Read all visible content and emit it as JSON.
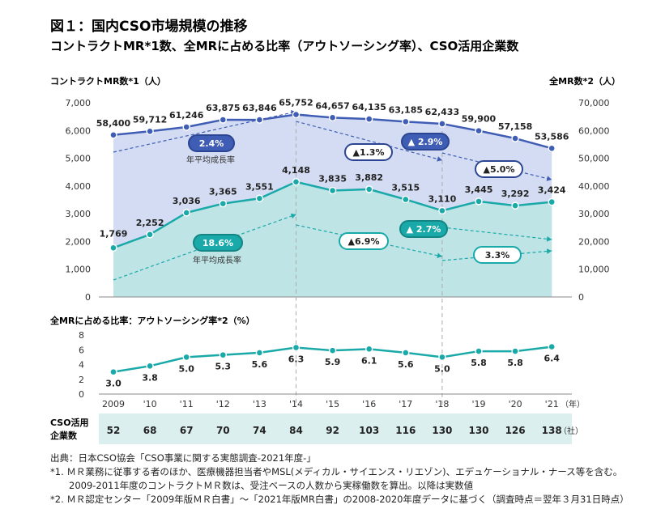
{
  "header": {
    "title": "図１：国内CSO市場規模の推移",
    "subtitle": "コントラクトMR*1数、全MRに占める比率（アウトソーシング率）、CSO活用企業数"
  },
  "chart_data": [
    {
      "type": "area",
      "left_axis_label": "コントラクトMR数*1（人）",
      "right_axis_label": "全MR数*2（人）",
      "x": [
        "2009",
        "'10",
        "'11",
        "'12",
        "'13",
        "'14",
        "'15",
        "'16",
        "'17",
        "'18",
        "'19",
        "'20",
        "'21"
      ],
      "ylim_left": [
        0,
        7000
      ],
      "yticks_left": [
        "0",
        "1,000",
        "2,000",
        "3,000",
        "4,000",
        "5,000",
        "6,000",
        "7,000"
      ],
      "ylim_right": [
        0,
        70000
      ],
      "yticks_right": [
        "0",
        "10,000",
        "20,000",
        "30,000",
        "40,000",
        "50,000",
        "60,000",
        "70,000"
      ],
      "series": [
        {
          "name": "全MR数",
          "axis": "right",
          "color": "#3f5db4",
          "fill": "#d3dcf2",
          "values": [
            58400,
            59712,
            61246,
            63875,
            63846,
            65752,
            64657,
            64135,
            63185,
            62433,
            59900,
            57158,
            53586
          ],
          "labels": [
            "58,400",
            "59,712",
            "61,246",
            "63,875",
            "63,846",
            "65,752",
            "64,657",
            "64,135",
            "63,185",
            "62,433",
            "59,900",
            "57,158",
            "53,586"
          ]
        },
        {
          "name": "コントラクトMR数",
          "axis": "left",
          "color": "#1aa9a9",
          "fill": "#bfe4e6",
          "values": [
            1769,
            2252,
            3036,
            3365,
            3551,
            4148,
            3835,
            3882,
            3515,
            3110,
            3445,
            3292,
            3424
          ],
          "labels": [
            "1,769",
            "2,252",
            "3,036",
            "3,365",
            "3,551",
            "4,148",
            "3,835",
            "3,882",
            "3,515",
            "3,110",
            "3,445",
            "3,292",
            "3,424"
          ]
        }
      ],
      "annotations": {
        "growth_label": "年平均成長率",
        "blue_badges": [
          "2.4%",
          "▲1.3%",
          "▲ 2.9%",
          "▲5.0%"
        ],
        "teal_badges": [
          "18.6%",
          "▲6.9%",
          "▲ 2.7%",
          "3.3%"
        ]
      }
    },
    {
      "type": "line",
      "axis_label": "全MRに占める比率：アウトソーシング率*2（%）",
      "ylim": [
        0,
        8
      ],
      "yticks": [
        "0",
        "2",
        "4",
        "6",
        "8"
      ],
      "values": [
        3.0,
        3.8,
        5.0,
        5.3,
        5.6,
        6.3,
        5.9,
        6.1,
        5.6,
        5.0,
        5.8,
        5.8,
        6.4
      ],
      "labels": [
        "3.0",
        "3.8",
        "5.0",
        "5.3",
        "5.6",
        "6.3",
        "5.9",
        "6.1",
        "5.6",
        "5.0",
        "5.8",
        "5.8",
        "6.4"
      ],
      "year_suffix": "（年）"
    },
    {
      "type": "table",
      "row_label_line1": "CSO活用",
      "row_label_line2": "企業数",
      "values": [
        "52",
        "68",
        "67",
        "70",
        "74",
        "84",
        "92",
        "103",
        "116",
        "130",
        "130",
        "126",
        "138"
      ],
      "unit": "（社）"
    }
  ],
  "notes": [
    "出典：日本CSO協会「CSO事業に関する実態調査-2021年度-」",
    "*1. ＭＲ業務に従事する者のほか、医療機器担当者やMSL(メディカル・サイエンス・リエゾン)、エデュケーショナル・ナース等を含む。",
    "　　2009-2011年度のコントラクトＭＲ数は、受注ベースの人数から実稼働数を算出。以降は実数値",
    "*2. ＭＲ認定センター「2009年版ＭＲ白書」～「2021年版MR白書」の2008-2020年度データに基づく（調査時点＝翌年３月31日時点）"
  ],
  "colors": {
    "blue": "#3f5db4",
    "teal": "#1aa9a9",
    "blue_fill": "#d3dcf2",
    "teal_fill": "#bfe4e6",
    "table_band": "#dcefef"
  }
}
